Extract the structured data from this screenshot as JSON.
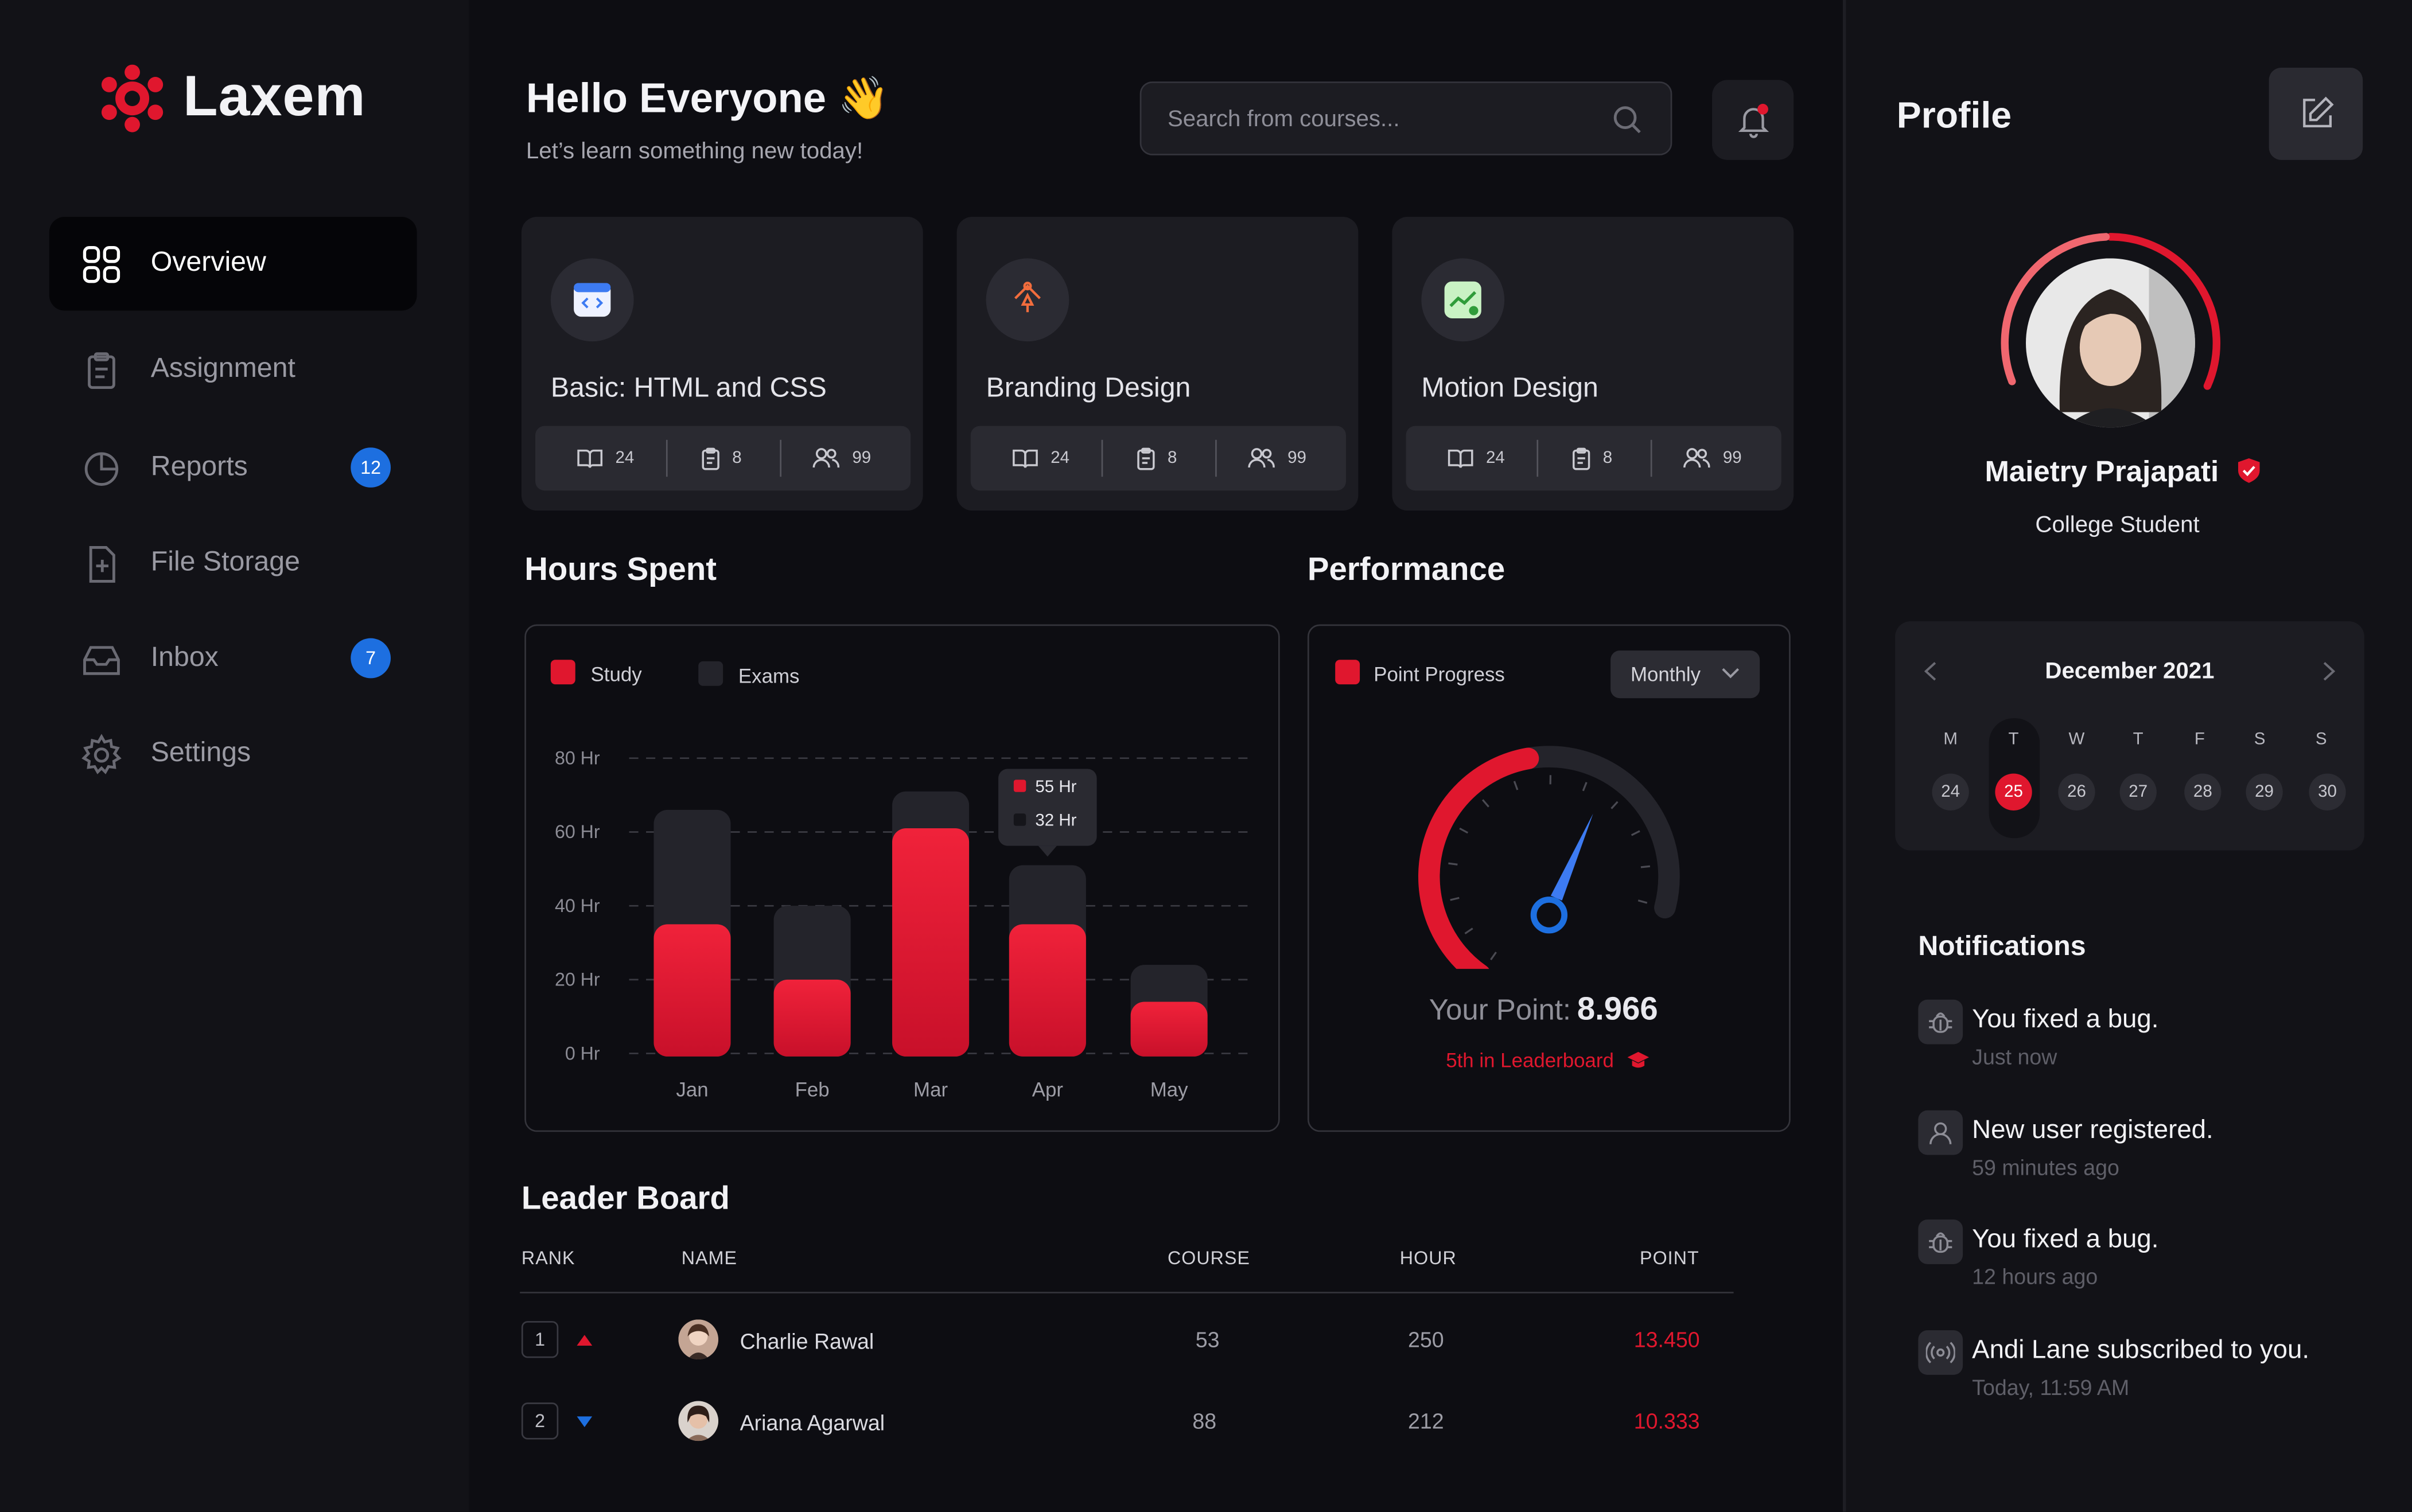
{
  "brand": {
    "name": "Laxem",
    "accent": "#e0172e",
    "blue": "#1d6fe0"
  },
  "sidebar": {
    "items": [
      {
        "label": "Overview",
        "icon": "grid-icon",
        "active": true,
        "badge": null
      },
      {
        "label": "Assignment",
        "icon": "clipboard-icon",
        "active": false,
        "badge": null
      },
      {
        "label": "Reports",
        "icon": "pie-chart-icon",
        "active": false,
        "badge": "12"
      },
      {
        "label": "File Storage",
        "icon": "file-plus-icon",
        "active": false,
        "badge": null
      },
      {
        "label": "Inbox",
        "icon": "inbox-icon",
        "active": false,
        "badge": "7"
      },
      {
        "label": "Settings",
        "icon": "gear-icon",
        "active": false,
        "badge": null
      }
    ]
  },
  "header": {
    "title": "Hello Everyone",
    "emoji": "👋",
    "subtitle": "Let’s learn something new today!",
    "search_placeholder": "Search from courses..."
  },
  "courses": [
    {
      "title": "Basic: HTML and CSS",
      "icon": "code-window-icon",
      "lessons": "24",
      "assignments": "8",
      "students": "99"
    },
    {
      "title": "Branding Design",
      "icon": "pen-tool-icon",
      "lessons": "24",
      "assignments": "8",
      "students": "99"
    },
    {
      "title": "Motion Design",
      "icon": "trend-chart-icon",
      "lessons": "24",
      "assignments": "8",
      "students": "99"
    }
  ],
  "hours": {
    "title": "Hours Spent",
    "legend": {
      "study": "Study",
      "exams": "Exams"
    },
    "tooltip": {
      "study": "55 Hr",
      "exams": "32 Hr"
    }
  },
  "chart_data": {
    "type": "bar",
    "title": "Hours Spent",
    "categories": [
      "Jan",
      "Feb",
      "Mar",
      "Apr",
      "May"
    ],
    "series": [
      {
        "name": "Study",
        "values": [
          35,
          20,
          61,
          35,
          14
        ]
      },
      {
        "name": "Exams",
        "values": [
          66,
          40,
          71,
          51,
          24
        ]
      }
    ],
    "y_ticks": [
      "0 Hr",
      "20 Hr",
      "40 Hr",
      "60 Hr",
      "80 Hr"
    ],
    "ylim": [
      0,
      80
    ],
    "grid": true
  },
  "performance": {
    "title": "Performance",
    "legend": "Point Progress",
    "period": "Monthly",
    "point_label": "Your Point:",
    "point_value": "8.966",
    "rank_text": "5th in Leaderboard",
    "gauge_fraction": 0.72
  },
  "leaderboard": {
    "title": "Leader Board",
    "columns": {
      "rank": "RANK",
      "name": "NAME",
      "course": "COURSE",
      "hour": "HOUR",
      "point": "POINT"
    },
    "rows": [
      {
        "rank": "1",
        "trend": "up",
        "name": "Charlie Rawal",
        "course": "53",
        "hour": "250",
        "point": "13.450"
      },
      {
        "rank": "2",
        "trend": "down",
        "name": "Ariana Agarwal",
        "course": "88",
        "hour": "212",
        "point": "10.333"
      }
    ]
  },
  "profile": {
    "title": "Profile",
    "name": "Maietry Prajapati",
    "role": "College Student"
  },
  "calendar": {
    "month": "December 2021",
    "days": [
      "M",
      "T",
      "W",
      "T",
      "F",
      "S",
      "S"
    ],
    "dates": [
      "24",
      "25",
      "26",
      "27",
      "28",
      "29",
      "30"
    ],
    "selected_index": 1
  },
  "notifications": {
    "title": "Notifications",
    "items": [
      {
        "text": "You fixed a bug.",
        "time": "Just now",
        "icon": "bug-icon"
      },
      {
        "text": "New user registered.",
        "time": "59 minutes ago",
        "icon": "user-icon"
      },
      {
        "text": "You fixed a bug.",
        "time": "12 hours ago",
        "icon": "bug-icon"
      },
      {
        "text": "Andi Lane subscribed to you.",
        "time": "Today, 11:59 AM",
        "icon": "broadcast-icon"
      }
    ]
  }
}
